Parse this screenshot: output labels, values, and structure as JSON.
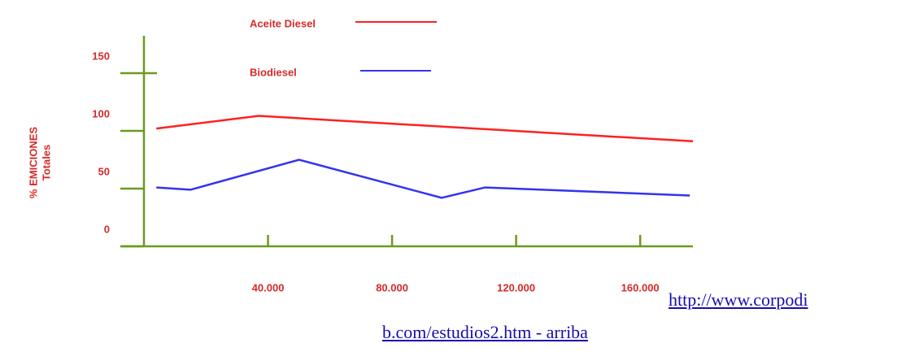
{
  "chart_data": {
    "type": "line",
    "ylabel": [
      "% EMICIONES",
      "Totales"
    ],
    "xlim": [
      0,
      177000
    ],
    "ylim": [
      0,
      150
    ],
    "xticks": [
      {
        "value": 40000,
        "label": "40.000"
      },
      {
        "value": 80000,
        "label": "80.000"
      },
      {
        "value": 120000,
        "label": "120.000"
      },
      {
        "value": 160000,
        "label": "160.000"
      }
    ],
    "yticks": [
      0,
      50,
      100,
      150
    ],
    "series": [
      {
        "name": "Aceite Diesel",
        "color": "#ff2020",
        "x": [
          4000,
          37000,
          177000
        ],
        "values": [
          102,
          113,
          91
        ]
      },
      {
        "name": "Biodiesel",
        "color": "#3333ee",
        "x": [
          4000,
          15000,
          50000,
          96000,
          110000,
          176000
        ],
        "values": [
          51,
          49,
          75,
          42,
          51,
          44
        ]
      }
    ]
  },
  "link": {
    "lines": [
      "http://www.corpodi",
      "b.com/estudios2.htm - arriba"
    ]
  }
}
